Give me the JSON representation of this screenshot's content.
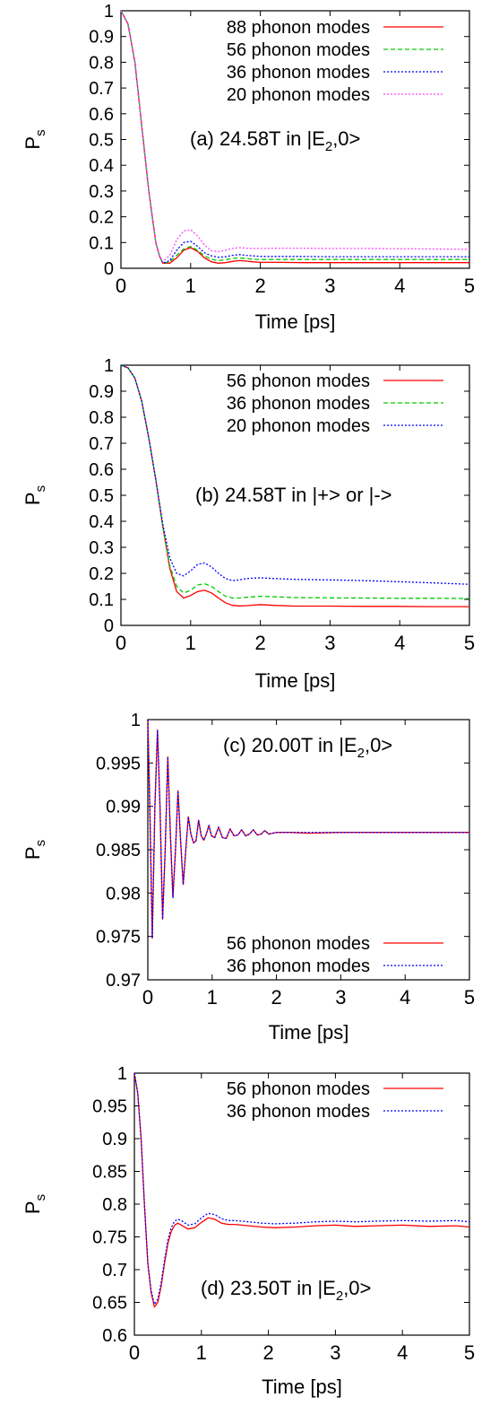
{
  "chart_data": [
    {
      "type": "line",
      "panel": "a",
      "annotation": "(a) 24.58T in |E",
      "annotation_sub": "2",
      "annotation_end": ",0>",
      "xlabel": "Time [ps]",
      "ylabel": "P",
      "ylabel_sub": "s",
      "xlim": [
        0,
        5
      ],
      "ylim": [
        0,
        1
      ],
      "xticks": [
        "0",
        "1",
        "2",
        "3",
        "4",
        "5"
      ],
      "yticks": [
        "0",
        "0.1",
        "0.2",
        "0.3",
        "0.4",
        "0.5",
        "0.6",
        "0.7",
        "0.8",
        "0.9",
        "1"
      ],
      "legend_position": "top-right",
      "series": [
        {
          "name": "88 phonon modes",
          "color": "#ff0000",
          "dash": "solid",
          "x": [
            0,
            0.1,
            0.2,
            0.3,
            0.4,
            0.5,
            0.55,
            0.6,
            0.7,
            0.8,
            0.9,
            1.0,
            1.1,
            1.2,
            1.3,
            1.4,
            1.5,
            1.6,
            1.7,
            1.8,
            1.9,
            2.0,
            2.3,
            2.6,
            3.0,
            3.5,
            4.0,
            4.5,
            5.0
          ],
          "y": [
            1,
            0.95,
            0.8,
            0.55,
            0.3,
            0.1,
            0.05,
            0.02,
            0.02,
            0.04,
            0.07,
            0.08,
            0.065,
            0.04,
            0.025,
            0.02,
            0.022,
            0.027,
            0.03,
            0.028,
            0.025,
            0.023,
            0.023,
            0.022,
            0.022,
            0.022,
            0.022,
            0.022,
            0.022
          ]
        },
        {
          "name": "56 phonon modes",
          "color": "#00cc00",
          "dash": "dashed",
          "x": [
            0,
            0.1,
            0.2,
            0.3,
            0.4,
            0.5,
            0.55,
            0.6,
            0.7,
            0.8,
            0.9,
            1.0,
            1.1,
            1.2,
            1.3,
            1.4,
            1.5,
            1.6,
            1.7,
            1.8,
            1.9,
            2.0,
            2.3,
            2.6,
            3.0,
            3.5,
            4.0,
            4.5,
            5.0
          ],
          "y": [
            1,
            0.95,
            0.8,
            0.55,
            0.3,
            0.1,
            0.05,
            0.02,
            0.025,
            0.05,
            0.075,
            0.085,
            0.07,
            0.048,
            0.035,
            0.03,
            0.033,
            0.038,
            0.04,
            0.038,
            0.035,
            0.034,
            0.034,
            0.034,
            0.034,
            0.034,
            0.034,
            0.034,
            0.034
          ]
        },
        {
          "name": "36 phonon modes",
          "color": "#0000ff",
          "dash": "dotted",
          "x": [
            0,
            0.1,
            0.2,
            0.3,
            0.4,
            0.5,
            0.55,
            0.6,
            0.7,
            0.8,
            0.9,
            1.0,
            1.1,
            1.2,
            1.3,
            1.4,
            1.5,
            1.6,
            1.7,
            1.8,
            1.9,
            2.0,
            2.3,
            2.6,
            3.0,
            3.5,
            4.0,
            4.5,
            5.0
          ],
          "y": [
            1,
            0.95,
            0.8,
            0.55,
            0.3,
            0.1,
            0.05,
            0.02,
            0.03,
            0.07,
            0.1,
            0.105,
            0.085,
            0.06,
            0.048,
            0.043,
            0.045,
            0.05,
            0.053,
            0.05,
            0.048,
            0.046,
            0.046,
            0.046,
            0.045,
            0.045,
            0.045,
            0.045,
            0.045
          ]
        },
        {
          "name": "20 phonon modes",
          "color": "#ff44ff",
          "dash": "dotted",
          "x": [
            0,
            0.1,
            0.2,
            0.3,
            0.4,
            0.5,
            0.55,
            0.6,
            0.7,
            0.8,
            0.9,
            1.0,
            1.1,
            1.2,
            1.3,
            1.4,
            1.5,
            1.6,
            1.7,
            1.8,
            1.9,
            2.0,
            2.3,
            2.6,
            3.0,
            3.5,
            4.0,
            4.5,
            5.0
          ],
          "y": [
            1,
            0.95,
            0.8,
            0.55,
            0.3,
            0.1,
            0.05,
            0.025,
            0.05,
            0.11,
            0.145,
            0.15,
            0.125,
            0.09,
            0.068,
            0.065,
            0.07,
            0.077,
            0.08,
            0.078,
            0.077,
            0.077,
            0.078,
            0.078,
            0.077,
            0.077,
            0.076,
            0.075,
            0.073
          ]
        }
      ]
    },
    {
      "type": "line",
      "panel": "b",
      "annotation": "(b) 24.58T in |+> or |->",
      "annotation_sub": "",
      "annotation_end": "",
      "xlabel": "Time [ps]",
      "ylabel": "P",
      "ylabel_sub": "s",
      "xlim": [
        0,
        5
      ],
      "ylim": [
        0,
        1
      ],
      "xticks": [
        "0",
        "1",
        "2",
        "3",
        "4",
        "5"
      ],
      "yticks": [
        "0",
        "0.1",
        "0.2",
        "0.3",
        "0.4",
        "0.5",
        "0.6",
        "0.7",
        "0.8",
        "0.9",
        "1"
      ],
      "legend_position": "top-right",
      "series": [
        {
          "name": "56 phonon modes",
          "color": "#ff0000",
          "dash": "solid",
          "x": [
            0,
            0.1,
            0.2,
            0.3,
            0.4,
            0.5,
            0.6,
            0.7,
            0.8,
            0.9,
            1.0,
            1.1,
            1.2,
            1.3,
            1.4,
            1.5,
            1.6,
            1.7,
            1.8,
            2.0,
            2.2,
            2.5,
            3.0,
            3.5,
            4.0,
            4.5,
            5.0
          ],
          "y": [
            1,
            0.99,
            0.95,
            0.86,
            0.72,
            0.56,
            0.38,
            0.22,
            0.13,
            0.105,
            0.115,
            0.13,
            0.135,
            0.125,
            0.105,
            0.087,
            0.077,
            0.075,
            0.076,
            0.08,
            0.077,
            0.074,
            0.074,
            0.073,
            0.073,
            0.072,
            0.072
          ]
        },
        {
          "name": "36 phonon modes",
          "color": "#00cc00",
          "dash": "dashed",
          "x": [
            0,
            0.1,
            0.2,
            0.3,
            0.4,
            0.5,
            0.6,
            0.7,
            0.8,
            0.9,
            1.0,
            1.1,
            1.2,
            1.3,
            1.4,
            1.5,
            1.6,
            1.7,
            1.8,
            2.0,
            2.2,
            2.5,
            3.0,
            3.5,
            4.0,
            4.5,
            5.0
          ],
          "y": [
            1,
            0.99,
            0.95,
            0.86,
            0.72,
            0.56,
            0.38,
            0.23,
            0.15,
            0.125,
            0.135,
            0.155,
            0.16,
            0.15,
            0.13,
            0.112,
            0.105,
            0.105,
            0.108,
            0.112,
            0.11,
            0.107,
            0.106,
            0.105,
            0.104,
            0.104,
            0.103
          ]
        },
        {
          "name": "20 phonon modes",
          "color": "#0000ff",
          "dash": "dotted",
          "x": [
            0,
            0.1,
            0.2,
            0.3,
            0.4,
            0.5,
            0.6,
            0.7,
            0.8,
            0.9,
            1.0,
            1.1,
            1.2,
            1.3,
            1.4,
            1.5,
            1.6,
            1.7,
            1.8,
            2.0,
            2.2,
            2.5,
            3.0,
            3.5,
            4.0,
            4.5,
            5.0
          ],
          "y": [
            1,
            0.99,
            0.95,
            0.86,
            0.72,
            0.56,
            0.39,
            0.26,
            0.2,
            0.19,
            0.21,
            0.235,
            0.24,
            0.225,
            0.2,
            0.18,
            0.172,
            0.175,
            0.18,
            0.183,
            0.18,
            0.177,
            0.175,
            0.172,
            0.168,
            0.163,
            0.158
          ]
        }
      ]
    },
    {
      "type": "line",
      "panel": "c",
      "annotation": "(c) 20.00T in |E",
      "annotation_sub": "2",
      "annotation_end": ",0>",
      "xlabel": "Time [ps]",
      "ylabel": "P",
      "ylabel_sub": "s",
      "xlim": [
        0,
        5
      ],
      "ylim": [
        0.97,
        1
      ],
      "xticks": [
        "0",
        "1",
        "2",
        "3",
        "4",
        "5"
      ],
      "yticks": [
        "0.97",
        "0.975",
        "0.98",
        "0.985",
        "0.99",
        "0.995",
        "1"
      ],
      "legend_position": "bottom-right",
      "series": [
        {
          "name": "56 phonon modes",
          "color": "#ff0000",
          "dash": "solid",
          "x": [
            0,
            0.03,
            0.07,
            0.11,
            0.15,
            0.19,
            0.23,
            0.27,
            0.31,
            0.35,
            0.39,
            0.43,
            0.47,
            0.51,
            0.55,
            0.59,
            0.63,
            0.67,
            0.71,
            0.75,
            0.79,
            0.83,
            0.87,
            0.91,
            0.95,
            0.99,
            1.04,
            1.1,
            1.16,
            1.22,
            1.28,
            1.34,
            1.4,
            1.46,
            1.52,
            1.58,
            1.64,
            1.7,
            1.76,
            1.82,
            1.88,
            1.94,
            2.0,
            2.2,
            2.5,
            3.0,
            3.5,
            4.0,
            4.5,
            5.0
          ],
          "y": [
            1,
            0.99,
            0.9748,
            0.99,
            0.9988,
            0.99,
            0.977,
            0.985,
            0.9957,
            0.987,
            0.9795,
            0.985,
            0.9918,
            0.986,
            0.981,
            0.985,
            0.9888,
            0.9868,
            0.9858,
            0.986,
            0.9884,
            0.9866,
            0.9861,
            0.9868,
            0.9878,
            0.9866,
            0.9864,
            0.9876,
            0.9864,
            0.9863,
            0.9874,
            0.9866,
            0.9867,
            0.9873,
            0.9866,
            0.9868,
            0.9873,
            0.9867,
            0.9868,
            0.9872,
            0.9868,
            0.9869,
            0.987,
            0.987,
            0.9869,
            0.987,
            0.987,
            0.987,
            0.987,
            0.987
          ]
        },
        {
          "name": "36 phonon modes",
          "color": "#0000ff",
          "dash": "dotted",
          "x": [
            0,
            0.03,
            0.07,
            0.11,
            0.15,
            0.19,
            0.23,
            0.27,
            0.31,
            0.35,
            0.39,
            0.43,
            0.47,
            0.51,
            0.55,
            0.59,
            0.63,
            0.67,
            0.71,
            0.75,
            0.79,
            0.83,
            0.87,
            0.91,
            0.95,
            0.99,
            1.04,
            1.1,
            1.16,
            1.22,
            1.28,
            1.34,
            1.4,
            1.46,
            1.52,
            1.58,
            1.64,
            1.7,
            1.76,
            1.82,
            1.88,
            1.94,
            2.0,
            2.2,
            2.5,
            3.0,
            3.5,
            4.0,
            4.5,
            5.0
          ],
          "y": [
            1,
            0.99,
            0.9748,
            0.99,
            0.9988,
            0.99,
            0.977,
            0.985,
            0.9957,
            0.987,
            0.9795,
            0.985,
            0.9918,
            0.986,
            0.981,
            0.985,
            0.9888,
            0.9868,
            0.9858,
            0.986,
            0.9884,
            0.9866,
            0.9861,
            0.9868,
            0.9878,
            0.9866,
            0.9864,
            0.9876,
            0.9864,
            0.9863,
            0.9874,
            0.9866,
            0.9867,
            0.9873,
            0.9866,
            0.9868,
            0.9873,
            0.9867,
            0.9868,
            0.9872,
            0.9868,
            0.9869,
            0.987,
            0.987,
            0.987,
            0.987,
            0.987,
            0.987,
            0.987,
            0.987
          ]
        }
      ]
    },
    {
      "type": "line",
      "panel": "d",
      "annotation": "(d) 23.50T in |E",
      "annotation_sub": "2",
      "annotation_end": ",0>",
      "xlabel": "Time [ps]",
      "ylabel": "P",
      "ylabel_sub": "s",
      "xlim": [
        0,
        5
      ],
      "ylim": [
        0.6,
        1
      ],
      "xticks": [
        "0",
        "1",
        "2",
        "3",
        "4",
        "5"
      ],
      "yticks": [
        "0.6",
        "0.65",
        "0.7",
        "0.75",
        "0.8",
        "0.85",
        "0.9",
        "0.95",
        "1"
      ],
      "legend_position": "top-right",
      "series": [
        {
          "name": "56 phonon modes",
          "color": "#ff0000",
          "dash": "solid",
          "x": [
            0,
            0.05,
            0.1,
            0.15,
            0.2,
            0.25,
            0.3,
            0.35,
            0.4,
            0.45,
            0.5,
            0.55,
            0.6,
            0.65,
            0.7,
            0.8,
            0.9,
            1.0,
            1.1,
            1.2,
            1.3,
            1.4,
            1.5,
            1.7,
            1.9,
            2.1,
            2.4,
            2.7,
            3.0,
            3.3,
            3.6,
            4.0,
            4.4,
            4.8,
            5.0
          ],
          "y": [
            1,
            0.97,
            0.9,
            0.8,
            0.71,
            0.665,
            0.643,
            0.65,
            0.675,
            0.71,
            0.74,
            0.758,
            0.768,
            0.771,
            0.768,
            0.762,
            0.764,
            0.772,
            0.779,
            0.777,
            0.771,
            0.769,
            0.769,
            0.767,
            0.765,
            0.764,
            0.765,
            0.767,
            0.768,
            0.766,
            0.767,
            0.768,
            0.766,
            0.767,
            0.765
          ]
        },
        {
          "name": "36 phonon modes",
          "color": "#0000ff",
          "dash": "dotted",
          "x": [
            0,
            0.05,
            0.1,
            0.15,
            0.2,
            0.25,
            0.3,
            0.35,
            0.4,
            0.45,
            0.5,
            0.55,
            0.6,
            0.65,
            0.7,
            0.8,
            0.9,
            1.0,
            1.1,
            1.2,
            1.3,
            1.4,
            1.5,
            1.7,
            1.9,
            2.1,
            2.4,
            2.7,
            3.0,
            3.3,
            3.6,
            4.0,
            4.4,
            4.8,
            5.0
          ],
          "y": [
            1,
            0.97,
            0.9,
            0.8,
            0.71,
            0.668,
            0.647,
            0.655,
            0.68,
            0.715,
            0.745,
            0.764,
            0.774,
            0.777,
            0.775,
            0.768,
            0.77,
            0.779,
            0.786,
            0.784,
            0.778,
            0.775,
            0.775,
            0.773,
            0.771,
            0.77,
            0.771,
            0.773,
            0.774,
            0.773,
            0.774,
            0.775,
            0.774,
            0.775,
            0.773
          ]
        }
      ]
    }
  ]
}
